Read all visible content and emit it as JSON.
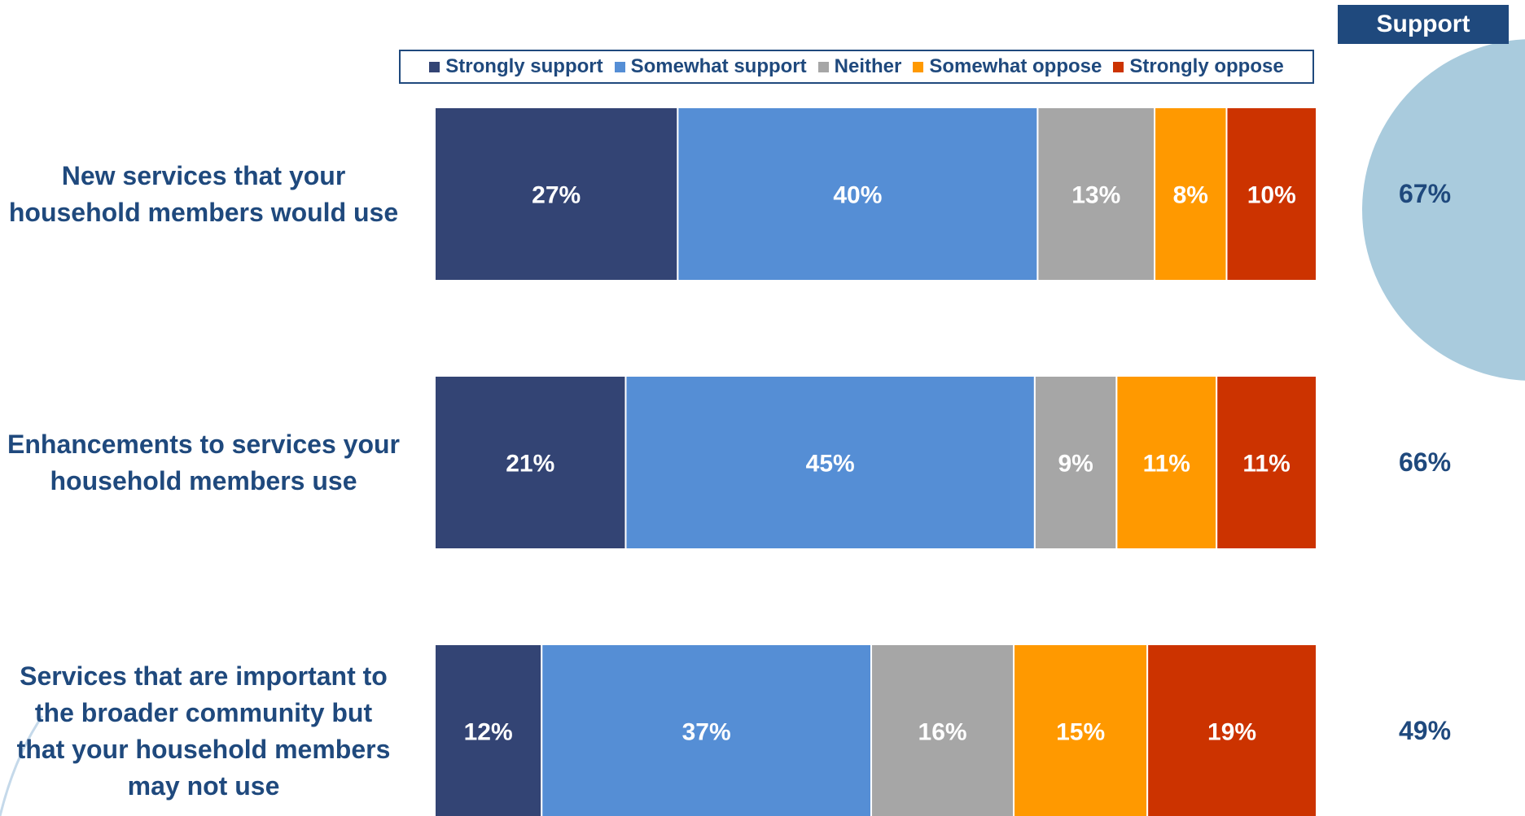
{
  "support_header": "Support",
  "chart_data": {
    "type": "bar",
    "orientation": "horizontal",
    "stacked": true,
    "categories": [
      "New services that your household members would use",
      "Enhancements to services your household members use",
      "Services that are important to the broader community but that your household members may not use"
    ],
    "series": [
      {
        "name": "Strongly support",
        "color": "#334474",
        "values": [
          27,
          21,
          12
        ]
      },
      {
        "name": "Somewhat support",
        "color": "#558ED5",
        "values": [
          40,
          45,
          37
        ]
      },
      {
        "name": "Neither",
        "color": "#A6A6A6",
        "values": [
          13,
          9,
          16
        ]
      },
      {
        "name": "Somewhat oppose",
        "color": "#FF9900",
        "values": [
          8,
          11,
          15
        ]
      },
      {
        "name": "Strongly oppose",
        "color": "#CC3300",
        "values": [
          10,
          11,
          19
        ]
      }
    ],
    "data_labels": [
      [
        "27%",
        "40%",
        "13%",
        "8%",
        "10%"
      ],
      [
        "21%",
        "45%",
        "9%",
        "11%",
        "11%"
      ],
      [
        "12%",
        "37%",
        "16%",
        "15%",
        "19%"
      ]
    ],
    "support_totals": [
      "67%",
      "66%",
      "49%"
    ],
    "legend_position": "top"
  },
  "row_label_lines": [
    [
      "New services that your",
      "household members would use"
    ],
    [
      "Enhancements to services your",
      "household members use"
    ],
    [
      "Services that are important to",
      "the broader community but",
      "that your household members",
      "may not use"
    ]
  ],
  "colors": {
    "title_text": "#1F497D",
    "support_header_bg": "#1F497D",
    "highlight_circle": "#A9CBDD",
    "decor_line": "#C5D9EA"
  }
}
